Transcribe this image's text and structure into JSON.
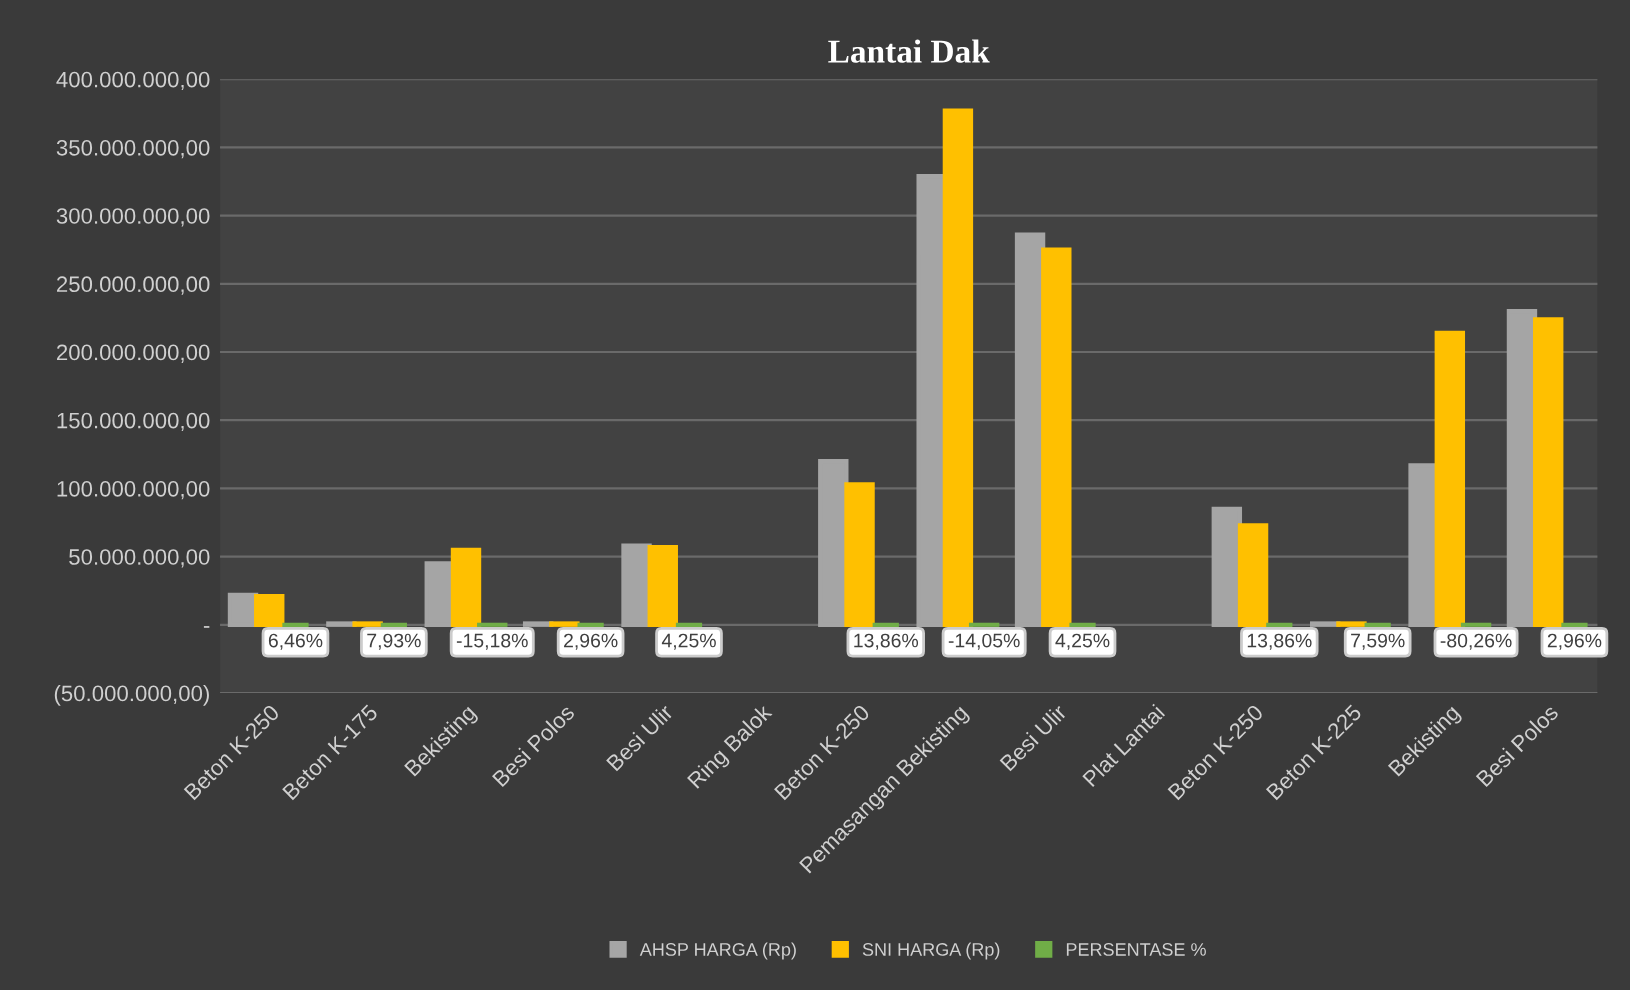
{
  "chart_data": {
    "type": "bar",
    "title": "Lantai Dak",
    "categories": [
      "Beton K-250",
      "Beton K-175",
      "Bekisting",
      "Besi Polos",
      "Besi Ulir",
      "Ring Balok",
      "Beton K-250",
      "Pemasangan Bekisting",
      "Besi Ulir",
      "Plat Lantai",
      "Beton K-250",
      "Beton K-225",
      "Bekisting",
      "Besi Polos"
    ],
    "series": [
      {
        "name": "AHSP HARGA (Rp)",
        "color": "#a5a5a5",
        "values": [
          22000000,
          1000000,
          45000000,
          1000000,
          58000000,
          null,
          120000000,
          329000000,
          286000000,
          null,
          85000000,
          1000000,
          117000000,
          230000000
        ]
      },
      {
        "name": "SNI HARGA (Rp)",
        "color": "#ffc000",
        "values": [
          21000000,
          1000000,
          55000000,
          1000000,
          57000000,
          null,
          103000000,
          377000000,
          275000000,
          null,
          73000000,
          1000000,
          214000000,
          224000000
        ]
      },
      {
        "name": "PERSENTASE %",
        "color": "#70ad47",
        "values": [
          6.46,
          7.93,
          -15.18,
          2.96,
          4.25,
          null,
          13.86,
          -14.05,
          4.25,
          null,
          13.86,
          7.59,
          -80.26,
          2.96
        ],
        "value_labels": [
          "6,46%",
          "7,93%",
          "-15,18%",
          "2,96%",
          "4,25%",
          null,
          "13,86%",
          "-14,05%",
          "4,25%",
          null,
          "13,86%",
          "7,59%",
          "-80,26%",
          "2,96%"
        ]
      }
    ],
    "ylim": [
      -50000000,
      400000000
    ],
    "yticks": [
      {
        "value": -50000000,
        "label": "(50.000.000,00)"
      },
      {
        "value": 0,
        "label": "-"
      },
      {
        "value": 50000000,
        "label": "50.000.000,00"
      },
      {
        "value": 100000000,
        "label": "100.000.000,00"
      },
      {
        "value": 150000000,
        "label": "150.000.000,00"
      },
      {
        "value": 200000000,
        "label": "200.000.000,00"
      },
      {
        "value": 250000000,
        "label": "250.000.000,00"
      },
      {
        "value": 300000000,
        "label": "300.000.000,00"
      },
      {
        "value": 350000000,
        "label": "350.000.000,00"
      },
      {
        "value": 400000000,
        "label": "400.000.000,00"
      }
    ],
    "grid": "y",
    "legend": "bottom"
  }
}
